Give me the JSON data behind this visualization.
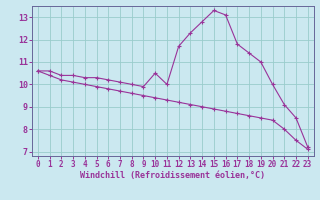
{
  "xlabel": "Windchill (Refroidissement éolien,°C)",
  "bg_color": "#cbe8f0",
  "line_color": "#993399",
  "grid_color": "#99cccc",
  "x_hours": [
    0,
    1,
    2,
    3,
    4,
    5,
    6,
    7,
    8,
    9,
    10,
    11,
    12,
    13,
    14,
    15,
    16,
    17,
    18,
    19,
    20,
    21,
    22,
    23
  ],
  "line1_y": [
    10.6,
    10.6,
    10.4,
    10.4,
    10.3,
    10.3,
    10.2,
    10.1,
    10.0,
    9.9,
    10.5,
    10.0,
    11.7,
    12.3,
    12.8,
    13.3,
    13.1,
    11.8,
    11.4,
    11.0,
    10.0,
    9.1,
    8.5,
    7.2
  ],
  "line2_y": [
    10.6,
    10.4,
    10.2,
    10.1,
    10.0,
    9.9,
    9.8,
    9.7,
    9.6,
    9.5,
    9.4,
    9.3,
    9.2,
    9.1,
    9.0,
    8.9,
    8.8,
    8.7,
    8.6,
    8.5,
    8.4,
    8.0,
    7.5,
    7.1
  ],
  "ylim_min": 6.8,
  "ylim_max": 13.5,
  "xlim_min": -0.5,
  "xlim_max": 23.5,
  "yticks": [
    7,
    8,
    9,
    10,
    11,
    12,
    13
  ],
  "xticks": [
    0,
    1,
    2,
    3,
    4,
    5,
    6,
    7,
    8,
    9,
    10,
    11,
    12,
    13,
    14,
    15,
    16,
    17,
    18,
    19,
    20,
    21,
    22,
    23
  ],
  "spine_color": "#666699",
  "tick_color": "#993399",
  "label_fontsize": 5.5,
  "xlabel_fontsize": 6.0
}
